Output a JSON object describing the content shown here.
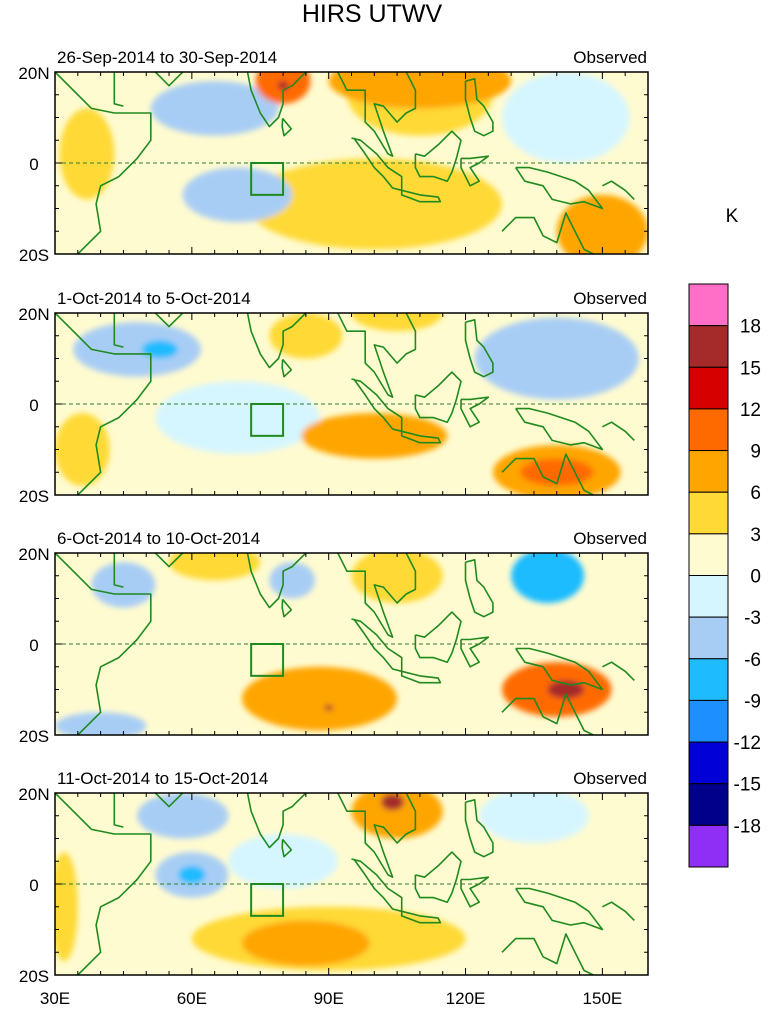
{
  "title": "HIRS UTWV",
  "chart_data": {
    "type": "heatmap",
    "title": "HIRS UTWV",
    "units": "K",
    "x_ticks": [
      "30E",
      "60E",
      "90E",
      "120E",
      "150E"
    ],
    "x_tick_values": [
      30,
      60,
      90,
      120,
      150
    ],
    "xlim": [
      30,
      160
    ],
    "ylim": [
      -20,
      20
    ],
    "y_ticks": [
      "20N",
      "0",
      "20S"
    ],
    "y_tick_values": [
      20,
      0,
      -20
    ],
    "colorbar": {
      "labels": [
        "18",
        "15",
        "12",
        "9",
        "6",
        "3",
        "0",
        "-3",
        "-6",
        "-9",
        "-12",
        "-15",
        "-18"
      ],
      "colors": [
        "#ff6ec7",
        "#a52a2a",
        "#d70000",
        "#ff6a00",
        "#ffa500",
        "#ffd936",
        "#fffbd0",
        "#d6f6ff",
        "#a8cdf5",
        "#1ebcff",
        "#1e8fff",
        "#0000d7",
        "#00008b",
        "#8f2ef5"
      ]
    },
    "box": {
      "lon": [
        73,
        80
      ],
      "lat": [
        -7,
        0
      ]
    },
    "panels": [
      {
        "label_left": "26-Sep-2014 to 30-Sep-2014",
        "label_right": "Observed",
        "blobs": [
          {
            "lon": 80,
            "lat": 18,
            "rx": 6,
            "ry": 5,
            "value": 9
          },
          {
            "lon": 80,
            "lat": 17,
            "rx": 1.2,
            "ry": 1,
            "value": 15
          },
          {
            "lon": 110,
            "lat": 18,
            "rx": 20,
            "ry": 6,
            "value": 6
          },
          {
            "lon": 110,
            "lat": 15,
            "rx": 16,
            "ry": 9,
            "value": 3
          },
          {
            "lon": 37,
            "lat": 2,
            "rx": 6,
            "ry": 10,
            "value": 4
          },
          {
            "lon": 100,
            "lat": -9,
            "rx": 28,
            "ry": 10,
            "value": 3
          },
          {
            "lon": 150,
            "lat": -15,
            "rx": 10,
            "ry": 8,
            "value": 6
          },
          {
            "lon": 65,
            "lat": 12,
            "rx": 14,
            "ry": 6,
            "value": -4
          },
          {
            "lon": 70,
            "lat": -7,
            "rx": 12,
            "ry": 6,
            "value": -4
          },
          {
            "lon": 142,
            "lat": 10,
            "rx": 14,
            "ry": 10,
            "value": -3
          }
        ]
      },
      {
        "label_left": "1-Oct-2014 to 5-Oct-2014",
        "label_right": "Observed",
        "blobs": [
          {
            "lon": 48,
            "lat": 12,
            "rx": 14,
            "ry": 6,
            "value": -6
          },
          {
            "lon": 53,
            "lat": 12,
            "rx": 4,
            "ry": 2,
            "value": -9
          },
          {
            "lon": 100,
            "lat": -7,
            "rx": 16,
            "ry": 5,
            "value": 6
          },
          {
            "lon": 140,
            "lat": -15,
            "rx": 14,
            "ry": 6,
            "value": 7
          },
          {
            "lon": 140,
            "lat": -15,
            "rx": 8,
            "ry": 3,
            "value": 9
          },
          {
            "lon": 85,
            "lat": 15,
            "rx": 8,
            "ry": 5,
            "value": 4
          },
          {
            "lon": 105,
            "lat": 20,
            "rx": 10,
            "ry": 4,
            "value": 3
          },
          {
            "lon": 140,
            "lat": 10,
            "rx": 18,
            "ry": 9,
            "value": -4
          },
          {
            "lon": 70,
            "lat": -3,
            "rx": 18,
            "ry": 8,
            "value": -3
          },
          {
            "lon": 36,
            "lat": -10,
            "rx": 6,
            "ry": 8,
            "value": 3
          }
        ]
      },
      {
        "label_left": "6-Oct-2014 to 10-Oct-2014",
        "label_right": "Observed",
        "blobs": [
          {
            "lon": 88,
            "lat": -12,
            "rx": 17,
            "ry": 7,
            "value": 6
          },
          {
            "lon": 90,
            "lat": -14,
            "rx": 1,
            "ry": 0.6,
            "value": 15
          },
          {
            "lon": 140,
            "lat": -10,
            "rx": 12,
            "ry": 6,
            "value": 9
          },
          {
            "lon": 142,
            "lat": -10,
            "rx": 4,
            "ry": 2,
            "value": 15
          },
          {
            "lon": 138,
            "lat": 15,
            "rx": 8,
            "ry": 6,
            "value": -8
          },
          {
            "lon": 45,
            "lat": 13,
            "rx": 7,
            "ry": 5,
            "value": -6
          },
          {
            "lon": 40,
            "lat": -18,
            "rx": 10,
            "ry": 3,
            "value": -6
          },
          {
            "lon": 82,
            "lat": 14,
            "rx": 5,
            "ry": 4,
            "value": -6
          },
          {
            "lon": 105,
            "lat": 15,
            "rx": 10,
            "ry": 6,
            "value": 4
          },
          {
            "lon": 65,
            "lat": 18,
            "rx": 10,
            "ry": 4,
            "value": 3
          }
        ]
      },
      {
        "label_left": "11-Oct-2014 to 15-Oct-2014",
        "label_right": "Observed",
        "blobs": [
          {
            "lon": 105,
            "lat": 16,
            "rx": 10,
            "ry": 6,
            "value": 6
          },
          {
            "lon": 104,
            "lat": 18,
            "rx": 2.5,
            "ry": 1.8,
            "value": 15
          },
          {
            "lon": 90,
            "lat": -12,
            "rx": 30,
            "ry": 7,
            "value": 3
          },
          {
            "lon": 85,
            "lat": -13,
            "rx": 14,
            "ry": 5,
            "value": 6
          },
          {
            "lon": 58,
            "lat": 15,
            "rx": 10,
            "ry": 5,
            "value": -4
          },
          {
            "lon": 60,
            "lat": 2,
            "rx": 8,
            "ry": 5,
            "value": -4
          },
          {
            "lon": 60,
            "lat": 2,
            "rx": 3,
            "ry": 2,
            "value": -8
          },
          {
            "lon": 135,
            "lat": 15,
            "rx": 12,
            "ry": 6,
            "value": -3
          },
          {
            "lon": 80,
            "lat": 5,
            "rx": 12,
            "ry": 6,
            "value": -3
          },
          {
            "lon": 32,
            "lat": -5,
            "rx": 3,
            "ry": 12,
            "value": 3
          }
        ]
      }
    ]
  }
}
